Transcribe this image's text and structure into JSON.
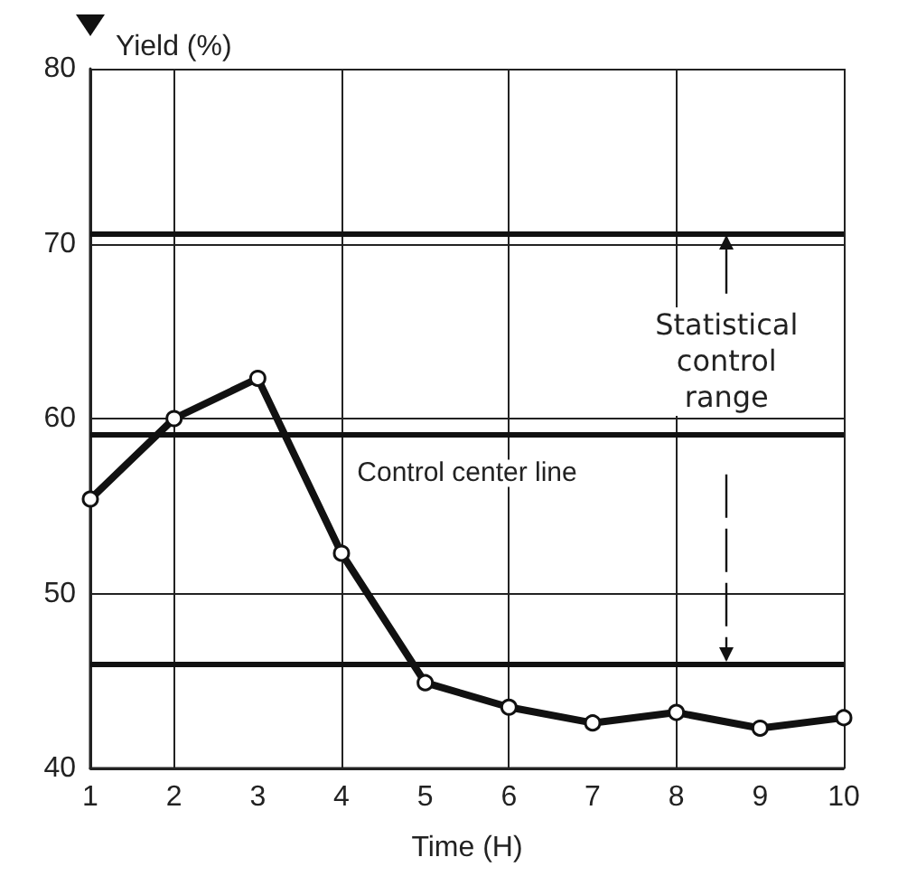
{
  "chart_data": {
    "type": "line",
    "xlabel": "Time (H)",
    "ylabel": "Yield (%)",
    "x": [
      1,
      2,
      3,
      4,
      5,
      6,
      7,
      8,
      9,
      10
    ],
    "series": [
      {
        "color": "#111111",
        "values": [
          55.4,
          60,
          62.3,
          52.3,
          44.9,
          43.5,
          42.6,
          43.2,
          42.3,
          42.9
        ]
      }
    ],
    "xlim": [
      1,
      10
    ],
    "xticks": [
      1,
      2,
      3,
      4,
      5,
      6,
      7,
      8,
      9,
      10
    ],
    "ylim": [
      40,
      80
    ],
    "yticks": [
      40,
      50,
      60,
      70,
      80
    ],
    "grid": true,
    "marker": "circle",
    "line_style": "solid",
    "ref_lines": [
      {
        "axis": "y",
        "value": 70.6,
        "color": "#111111"
      },
      {
        "axis": "y",
        "value": 59.1,
        "label": "Control center line",
        "color": "#111111"
      },
      {
        "axis": "y",
        "value": 46,
        "color": "#111111"
      }
    ],
    "annotations": [
      {
        "text": "Statistical\ncontrol\nrange",
        "x": 8.6,
        "y": 70.6
      }
    ]
  }
}
